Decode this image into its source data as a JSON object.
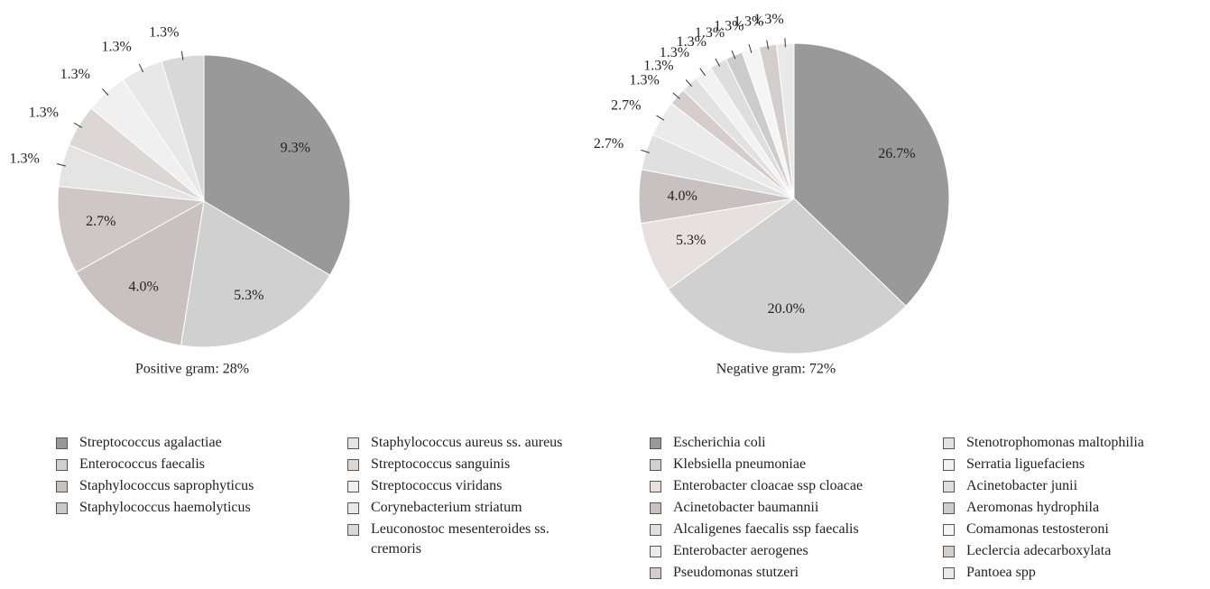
{
  "chart_data": [
    {
      "type": "pie",
      "title": "Positive gram: 28%",
      "categories": [
        "Streptococcus agalactiae",
        "Enterococcus faecalis",
        "Staphylococcus saprophyticus",
        "Staphylococcus haemolyticus",
        "Staphylococcus aureus ss. aureus",
        "Streptococcus sanguinis",
        "Streptococcus viridans",
        "Corynebacterium striatum",
        "Leuconostoc mesenteroides ss. cremoris"
      ],
      "values": [
        9.3,
        5.3,
        4.0,
        2.7,
        1.3,
        1.3,
        1.3,
        1.3,
        1.3
      ],
      "value_labels": [
        "9.3%",
        "5.3%",
        "4.0%",
        "2.7%",
        "1.3%",
        "1.3%",
        "1.3%",
        "1.3%",
        "1.3%"
      ],
      "colors": [
        "#999999",
        "#d0d0d0",
        "#c9c1c1",
        "#cfc6c6",
        "#e4e4e4",
        "#dcd6d6",
        "#f0f0f0",
        "#e8e8e8",
        "#d8d8d8"
      ]
    },
    {
      "type": "pie",
      "title": "Negative gram: 72%",
      "categories": [
        "Escherichia coli",
        "Klebsiella pneumoniae",
        "Enterobacter cloacae ssp cloacae",
        "Acinetobacter baumannii",
        "Alcaligenes faecalis ssp faecalis",
        "Enterobacter aerogenes",
        "Pseudomonas stutzeri",
        "Stenotrophomonas maltophilia",
        "Serratia liguefaciens",
        "Acinetobacter junii",
        "Aeromonas hydrophila",
        "Comamonas testosteroni",
        "Leclercia adecarboxylata",
        "Pantoea spp"
      ],
      "values": [
        26.7,
        20.0,
        5.3,
        4.0,
        2.7,
        2.7,
        1.3,
        1.3,
        1.3,
        1.3,
        1.3,
        1.3,
        1.3,
        1.3
      ],
      "value_labels": [
        "26.7%",
        "20.0%",
        "5.3%",
        "4.0%",
        "2.7%",
        "2.7%",
        "1.3%",
        "1.3%",
        "1.3%",
        "1.3%",
        "1.3%",
        "1.3%",
        "1.3%",
        "1.3%"
      ],
      "colors": [
        "#999999",
        "#d0d0d0",
        "#e6e0e0",
        "#c9c1c1",
        "#e0e0e0",
        "#ebebeb",
        "#d6cccc",
        "#e2e2e2",
        "#f2f2f2",
        "#dedede",
        "#cccccc",
        "#f5f5f5",
        "#d4cdcd",
        "#e9e9e9"
      ]
    }
  ]
}
